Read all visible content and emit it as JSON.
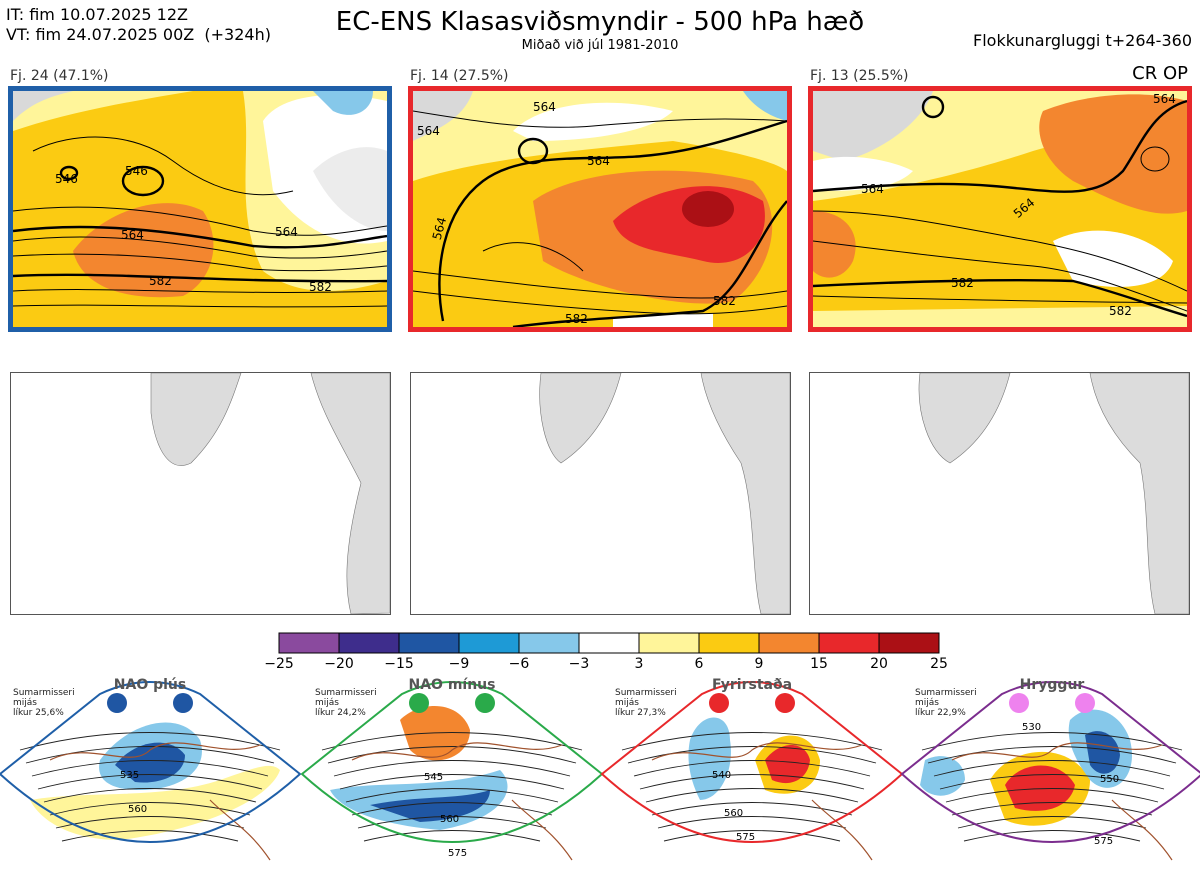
{
  "header": {
    "init_time": "IT: fim 10.07.2025 12Z",
    "valid_time": "VT: fim 24.07.2025 00Z  (+324h)",
    "title": "EC-ENS Klasasviðsmyndir - 500 hPa hæð",
    "subtitle": "Miðað við júl 1981-2010",
    "window": "Flokkunargluggi t+264-360",
    "cr_op": "CR OP"
  },
  "clusters": [
    {
      "label": "Fj. 24 (47.1%)",
      "frame_color": "#1f5fa8",
      "contour_labels": [
        "546",
        "546",
        "564",
        "564",
        "582",
        "582"
      ]
    },
    {
      "label": "Fj. 14 (27.5%)",
      "frame_color": "#e8282b",
      "contour_labels": [
        "564",
        "564",
        "564",
        "564",
        "582",
        "582"
      ]
    },
    {
      "label": "Fj. 13 (25.5%)",
      "frame_color": "#e8282b",
      "contour_labels": [
        "564",
        "564",
        "564",
        "582",
        "582"
      ]
    }
  ],
  "colorbar": {
    "ticks": [
      "−25",
      "−20",
      "−15",
      "−9",
      "−6",
      "−3",
      "3",
      "6",
      "9",
      "15",
      "20",
      "25"
    ],
    "colors": [
      "#8a4a9e",
      "#3e2d8c",
      "#1f56a3",
      "#1e9ad6",
      "#86c8ea",
      "#ffffff",
      "#fff59a",
      "#fbcb12",
      "#f3862f",
      "#e8282b",
      "#ab1015"
    ]
  },
  "regimes": [
    {
      "name": "NAO plús",
      "note": "Sumarmisseri\nmijás\nlíkur 25,6%",
      "dot_color": "#1f56a3",
      "frame_color": "#1f5fa8",
      "contour_labels": [
        "535",
        "560"
      ]
    },
    {
      "name": "NAO mínus",
      "note": "Sumarmisseri\nmijás\nlíkur 24,2%",
      "dot_color": "#2aaa4a",
      "frame_color": "#2aaa4a",
      "contour_labels": [
        "545",
        "560",
        "575"
      ]
    },
    {
      "name": "Fyrirstaða",
      "note": "Sumarmisseri\nmijás\nlíkur 27,3%",
      "dot_color": "#e8282b",
      "frame_color": "#e8282b",
      "contour_labels": [
        "540",
        "560",
        "575"
      ]
    },
    {
      "name": "Hryggur",
      "note": "Sumarmisseri\nmijás\nlíkur 22,9%",
      "dot_color": "#ee82ee",
      "frame_color": "#7b2d8e",
      "contour_labels": [
        "530",
        "550",
        "575"
      ]
    }
  ]
}
